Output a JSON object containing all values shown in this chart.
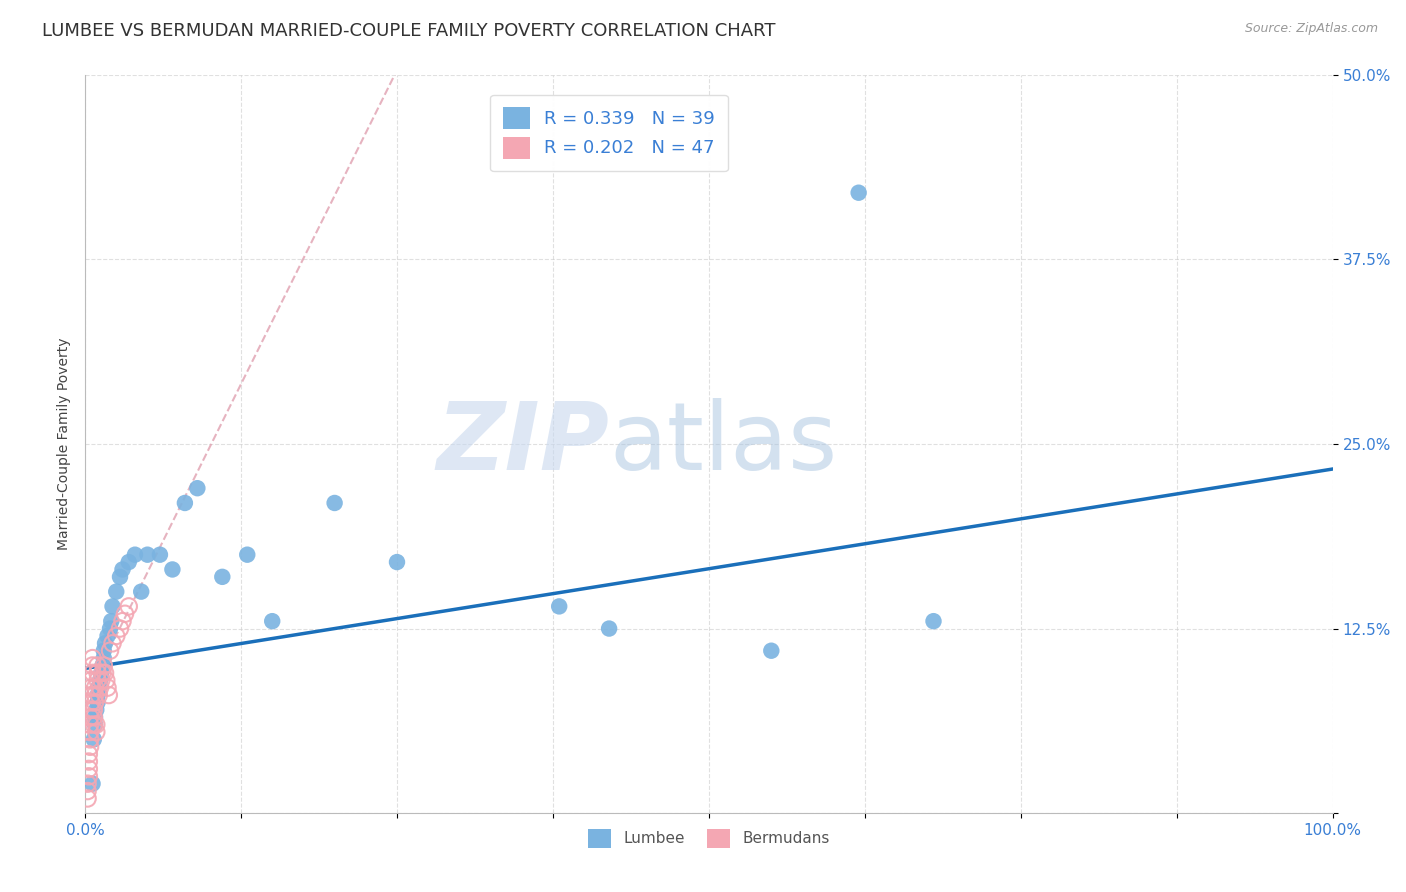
{
  "title": "LUMBEE VS BERMUDAN MARRIED-COUPLE FAMILY POVERTY CORRELATION CHART",
  "source": "Source: ZipAtlas.com",
  "ylabel_text": "Married-Couple Family Poverty",
  "xlim": [
    0,
    1.0
  ],
  "ylim": [
    0,
    0.5
  ],
  "xticks": [
    0.0,
    0.125,
    0.25,
    0.375,
    0.5,
    0.625,
    0.75,
    0.875,
    1.0
  ],
  "xticklabels": [
    "0.0%",
    "",
    "",
    "",
    "",
    "",
    "",
    "",
    "100.0%"
  ],
  "yticks": [
    0.0,
    0.125,
    0.25,
    0.375,
    0.5
  ],
  "yticklabels": [
    "",
    "12.5%",
    "25.0%",
    "37.5%",
    "50.0%"
  ],
  "lumbee_color": "#7ab3e0",
  "bermudan_color": "#f4a7b3",
  "bermudan_edge_color": "#e8708a",
  "lumbee_line_color": "#1a6fba",
  "bermudan_line_color": "#e0a0b0",
  "r_lumbee": 0.339,
  "n_lumbee": 39,
  "r_bermudan": 0.202,
  "n_bermudan": 47,
  "watermark_zip": "ZIP",
  "watermark_atlas": "atlas",
  "legend_text_color": "#3a7fd5",
  "title_fontsize": 13,
  "axis_label_fontsize": 10,
  "tick_fontsize": 11,
  "legend_fontsize": 13,
  "background_color": "#ffffff",
  "grid_color": "#cccccc",
  "lumbee_scatter_x": [
    0.006,
    0.007,
    0.008,
    0.008,
    0.009,
    0.01,
    0.01,
    0.011,
    0.012,
    0.013,
    0.014,
    0.015,
    0.015,
    0.016,
    0.018,
    0.02,
    0.021,
    0.022,
    0.025,
    0.028,
    0.03,
    0.035,
    0.04,
    0.045,
    0.05,
    0.06,
    0.07,
    0.08,
    0.09,
    0.11,
    0.13,
    0.15,
    0.2,
    0.25,
    0.38,
    0.42,
    0.55,
    0.68,
    0.62
  ],
  "lumbee_scatter_y": [
    0.02,
    0.05,
    0.06,
    0.065,
    0.07,
    0.075,
    0.08,
    0.085,
    0.09,
    0.095,
    0.1,
    0.105,
    0.11,
    0.115,
    0.12,
    0.125,
    0.13,
    0.14,
    0.15,
    0.16,
    0.165,
    0.17,
    0.175,
    0.15,
    0.175,
    0.175,
    0.165,
    0.21,
    0.22,
    0.16,
    0.175,
    0.13,
    0.21,
    0.17,
    0.14,
    0.125,
    0.11,
    0.13,
    0.42
  ],
  "bermudan_scatter_x": [
    0.002,
    0.002,
    0.002,
    0.003,
    0.003,
    0.003,
    0.003,
    0.004,
    0.004,
    0.004,
    0.004,
    0.004,
    0.005,
    0.005,
    0.005,
    0.005,
    0.005,
    0.006,
    0.006,
    0.006,
    0.007,
    0.007,
    0.007,
    0.008,
    0.008,
    0.008,
    0.009,
    0.009,
    0.01,
    0.01,
    0.01,
    0.011,
    0.012,
    0.013,
    0.014,
    0.015,
    0.016,
    0.017,
    0.018,
    0.019,
    0.02,
    0.022,
    0.025,
    0.028,
    0.03,
    0.032,
    0.035
  ],
  "bermudan_scatter_y": [
    0.01,
    0.015,
    0.02,
    0.025,
    0.03,
    0.035,
    0.04,
    0.045,
    0.05,
    0.055,
    0.06,
    0.065,
    0.07,
    0.075,
    0.08,
    0.085,
    0.09,
    0.095,
    0.1,
    0.105,
    0.06,
    0.065,
    0.07,
    0.075,
    0.08,
    0.085,
    0.055,
    0.06,
    0.09,
    0.095,
    0.1,
    0.08,
    0.085,
    0.09,
    0.095,
    0.1,
    0.095,
    0.09,
    0.085,
    0.08,
    0.11,
    0.115,
    0.12,
    0.125,
    0.13,
    0.135,
    0.14
  ]
}
